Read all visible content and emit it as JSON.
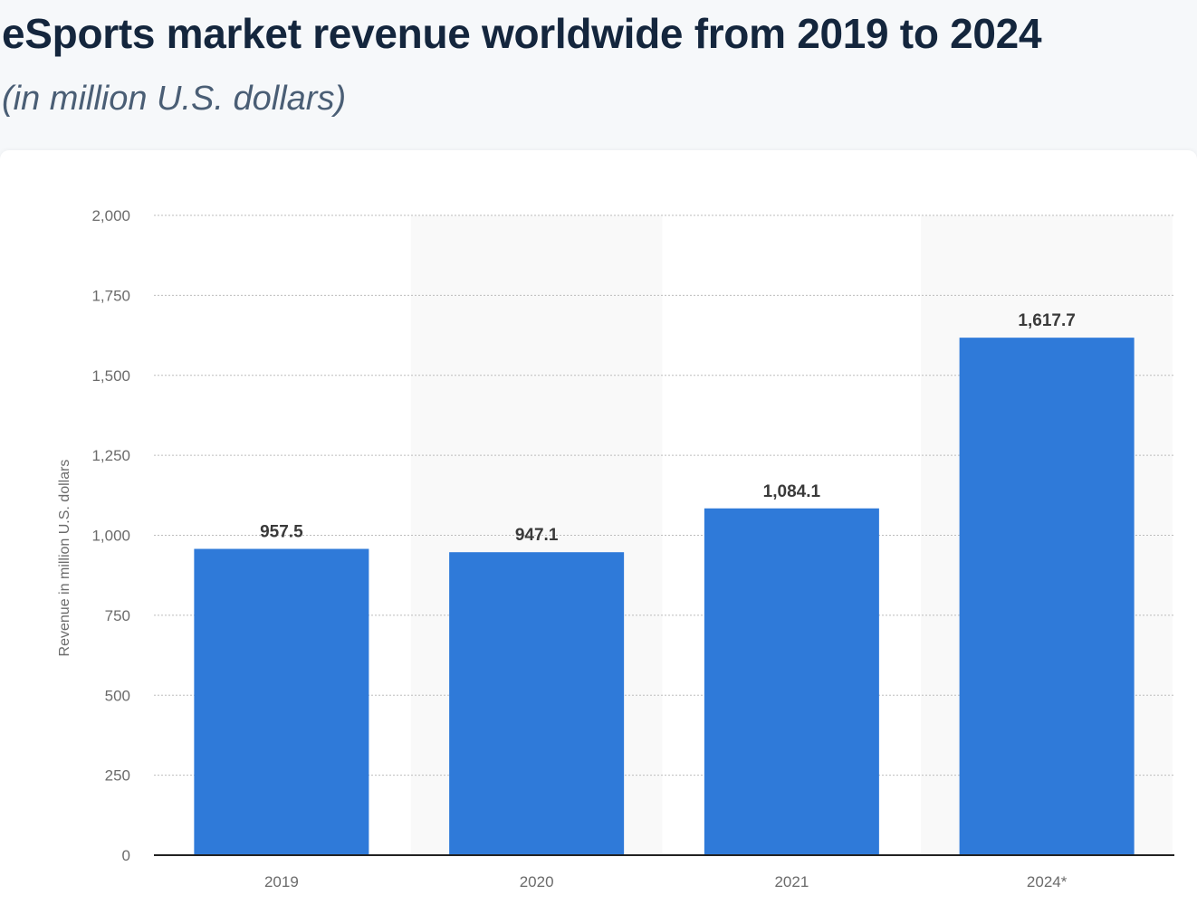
{
  "header": {
    "title": "eSports market revenue worldwide from 2019 to 2024",
    "subtitle": "(in million U.S. dollars)"
  },
  "chart_data": {
    "type": "bar",
    "categories": [
      "2019",
      "2020",
      "2021",
      "2024*"
    ],
    "values": [
      957.5,
      947.1,
      1084.1,
      1617.7
    ],
    "value_labels": [
      "957.5",
      "947.1",
      "1,084.1",
      "1,617.7"
    ],
    "ylabel": "Revenue in million U.S. dollars",
    "ylim": [
      0,
      2000
    ],
    "yticks": [
      0,
      250,
      500,
      750,
      1000,
      1250,
      1500,
      1750,
      2000
    ],
    "ytick_labels": [
      "0",
      "250",
      "500",
      "750",
      "1,000",
      "1,250",
      "1,500",
      "1,750",
      "2,000"
    ],
    "grid": true,
    "bar_color": "#2f7ad9",
    "band_color": "#f9f9f9"
  }
}
